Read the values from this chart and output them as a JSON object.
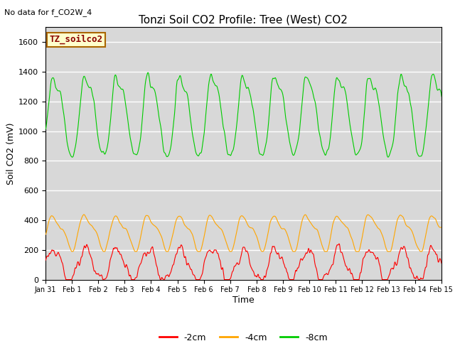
{
  "title": "Tonzi Soil CO2 Profile: Tree (West) CO2",
  "no_data_text": "No data for f_CO2W_4",
  "ylabel": "Soil CO2 (mV)",
  "xlabel": "Time",
  "inset_label": "TZ_soilco2",
  "legend_entries": [
    "-2cm",
    "-4cm",
    "-8cm"
  ],
  "legend_colors": [
    "#ff0000",
    "#ffa500",
    "#00cc00"
  ],
  "bg_color": "#e8e8e8",
  "plot_bg_color": "#d8d8d8",
  "ylim": [
    0,
    1700
  ],
  "yticks": [
    0,
    200,
    400,
    600,
    800,
    1000,
    1200,
    1400,
    1600
  ],
  "xtick_labels": [
    "Jan 31",
    "Feb 1",
    "Feb 2",
    "Feb 3",
    "Feb 4",
    "Feb 5",
    "Feb 6",
    "Feb 7",
    "Feb 8",
    "Feb 9",
    "Feb 10",
    "Feb 11",
    "Feb 12",
    "Feb 13",
    "Feb 14",
    "Feb 15"
  ],
  "color_2cm": "#ff0000",
  "color_4cm": "#ffa500",
  "color_8cm": "#00cc00"
}
